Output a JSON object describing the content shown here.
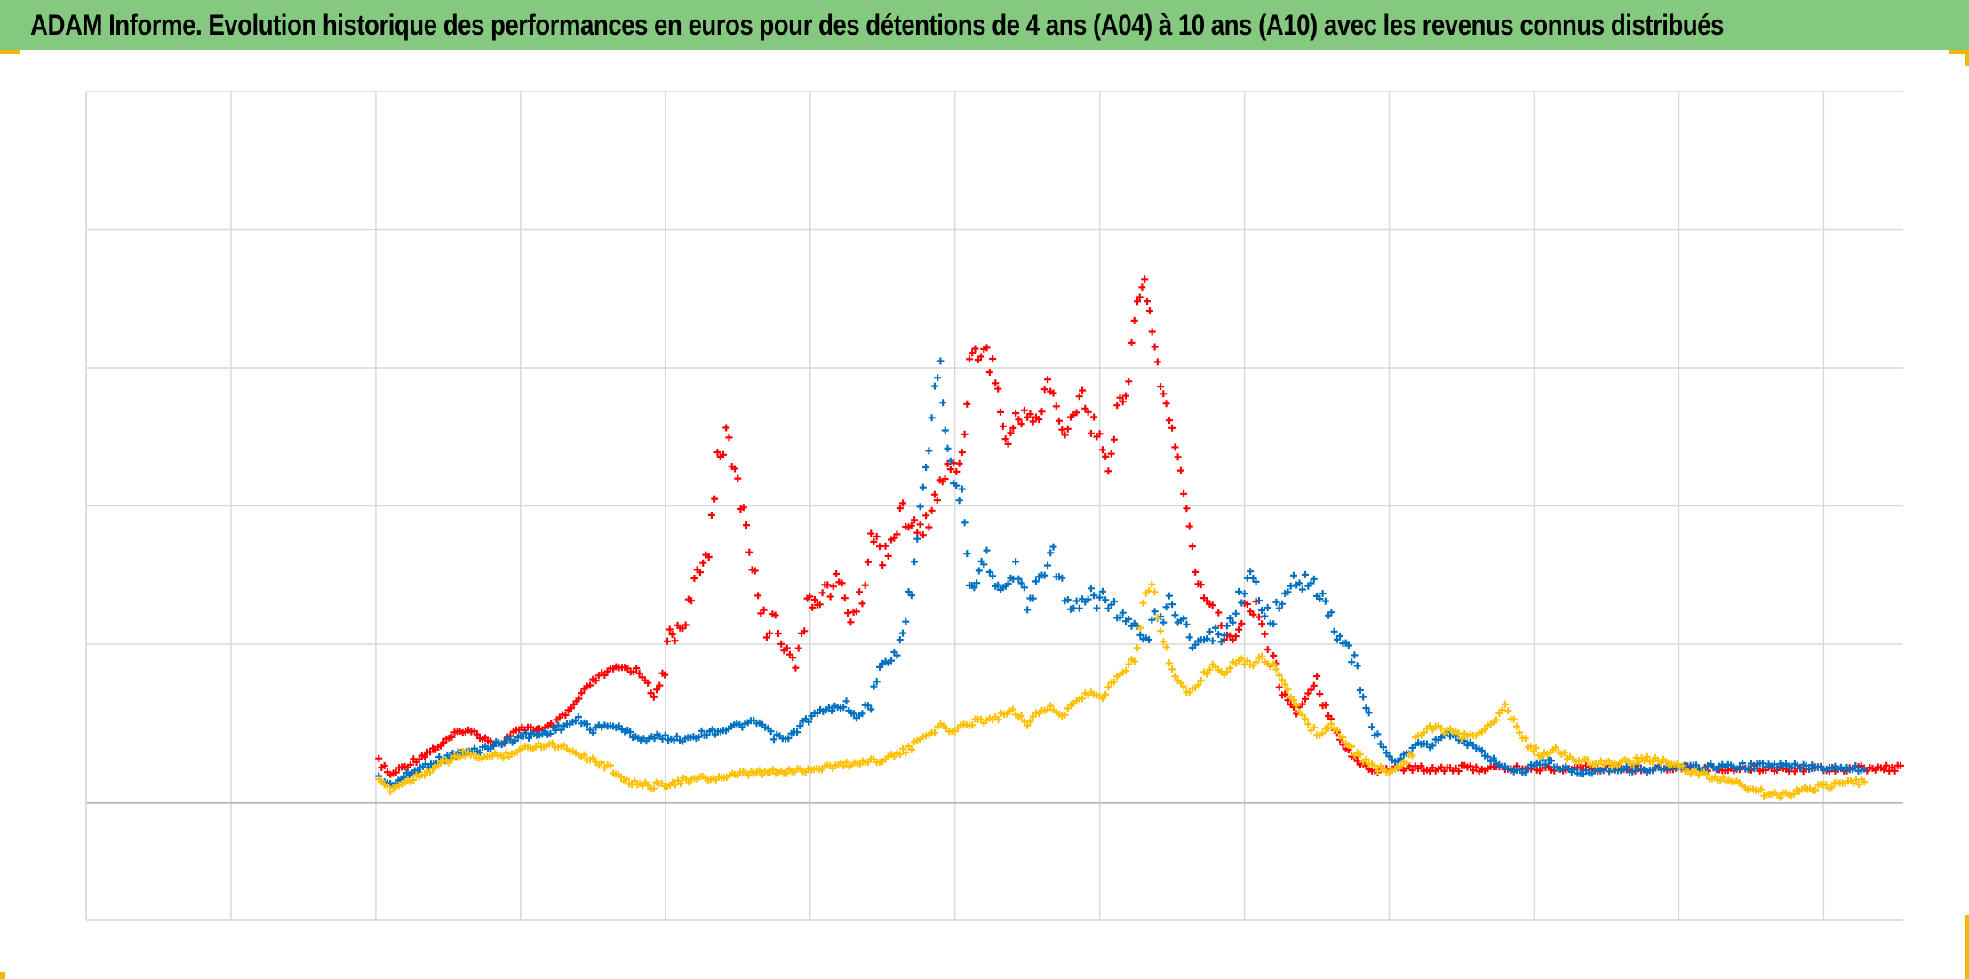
{
  "title": "ADAM Informe. Evolution historique des performances en euros pour des détentions de 4 ans (A04) à 10 ans (A10) avec les revenus connus distribués",
  "colors": {
    "title_bar": "#84c97f",
    "corner_marks": "#f2b807",
    "gridline": "#d9d9d9",
    "zero_line": "#bfbfbf"
  },
  "chart_data": {
    "type": "scatter",
    "marker": "plus",
    "title": "",
    "xlabel": "",
    "ylabel": "",
    "xlim": [
      0,
      12.55
    ],
    "ylim": [
      -0.85,
      5.15
    ],
    "x_gridlines": 13,
    "y_gridlines": [
      -0.85,
      0,
      1.15,
      2.15,
      3.15,
      4.15,
      5.15
    ],
    "grid": true,
    "tick_labels": "none",
    "legend": "none",
    "series": [
      {
        "color": "#ff0000",
        "points": [
          [
            2.02,
            0.3
          ],
          [
            2.1,
            0.2
          ],
          [
            2.3,
            0.33
          ],
          [
            2.45,
            0.42
          ],
          [
            2.6,
            0.53
          ],
          [
            2.7,
            0.5
          ],
          [
            2.85,
            0.42
          ],
          [
            2.95,
            0.5
          ],
          [
            3.05,
            0.55
          ],
          [
            3.15,
            0.52
          ],
          [
            3.25,
            0.58
          ],
          [
            3.35,
            0.68
          ],
          [
            3.42,
            0.78
          ],
          [
            3.5,
            0.88
          ],
          [
            3.6,
            0.95
          ],
          [
            3.7,
            0.98
          ],
          [
            3.8,
            0.96
          ],
          [
            3.88,
            0.88
          ],
          [
            3.92,
            0.75
          ],
          [
            3.98,
            0.9
          ],
          [
            4.03,
            1.2
          ],
          [
            4.12,
            1.3
          ],
          [
            4.2,
            1.55
          ],
          [
            4.3,
            1.85
          ],
          [
            4.36,
            2.5
          ],
          [
            4.42,
            2.65
          ],
          [
            4.5,
            2.3
          ],
          [
            4.56,
            2.0
          ],
          [
            4.62,
            1.6
          ],
          [
            4.7,
            1.25
          ],
          [
            4.76,
            1.35
          ],
          [
            4.82,
            1.12
          ],
          [
            4.9,
            1.05
          ],
          [
            4.98,
            1.4
          ],
          [
            5.05,
            1.5
          ],
          [
            5.12,
            1.55
          ],
          [
            5.2,
            1.6
          ],
          [
            5.28,
            1.35
          ],
          [
            5.36,
            1.48
          ],
          [
            5.42,
            1.95
          ],
          [
            5.5,
            1.8
          ],
          [
            5.56,
            1.9
          ],
          [
            5.64,
            2.1
          ],
          [
            5.7,
            2.0
          ],
          [
            5.78,
            1.95
          ],
          [
            5.86,
            2.2
          ],
          [
            5.95,
            2.4
          ],
          [
            6.05,
            2.5
          ],
          [
            6.1,
            3.2
          ],
          [
            6.2,
            3.3
          ],
          [
            6.28,
            3.1
          ],
          [
            6.35,
            2.6
          ],
          [
            6.42,
            2.75
          ],
          [
            6.5,
            2.85
          ],
          [
            6.58,
            2.75
          ],
          [
            6.64,
            3.05
          ],
          [
            6.7,
            2.9
          ],
          [
            6.76,
            2.6
          ],
          [
            6.82,
            2.85
          ],
          [
            6.88,
            3.0
          ],
          [
            6.94,
            2.7
          ],
          [
            7.0,
            2.75
          ],
          [
            7.06,
            2.35
          ],
          [
            7.14,
            2.95
          ],
          [
            7.2,
            3.05
          ],
          [
            7.26,
            3.65
          ],
          [
            7.31,
            3.75
          ],
          [
            7.38,
            3.3
          ],
          [
            7.44,
            2.95
          ],
          [
            7.52,
            2.55
          ],
          [
            7.58,
            2.3
          ],
          [
            7.66,
            1.65
          ],
          [
            7.72,
            1.55
          ],
          [
            7.8,
            1.35
          ],
          [
            7.86,
            1.2
          ],
          [
            7.94,
            1.2
          ],
          [
            8.0,
            1.4
          ],
          [
            8.08,
            1.45
          ],
          [
            8.14,
            1.2
          ],
          [
            8.2,
            1.0
          ],
          [
            8.28,
            0.8
          ],
          [
            8.36,
            0.65
          ],
          [
            8.44,
            0.8
          ],
          [
            8.5,
            0.9
          ],
          [
            8.56,
            0.7
          ],
          [
            8.62,
            0.55
          ],
          [
            8.7,
            0.4
          ],
          [
            8.8,
            0.28
          ],
          [
            8.9,
            0.23
          ],
          [
            9.0,
            0.25
          ],
          [
            9.3,
            0.25
          ],
          [
            9.8,
            0.25
          ],
          [
            10.3,
            0.25
          ],
          [
            10.8,
            0.25
          ],
          [
            11.3,
            0.25
          ],
          [
            11.8,
            0.25
          ],
          [
            12.3,
            0.25
          ],
          [
            12.55,
            0.25
          ]
        ]
      },
      {
        "color": "#0070c0",
        "points": [
          [
            2.02,
            0.18
          ],
          [
            2.1,
            0.13
          ],
          [
            2.25,
            0.22
          ],
          [
            2.4,
            0.3
          ],
          [
            2.55,
            0.35
          ],
          [
            2.7,
            0.38
          ],
          [
            2.85,
            0.43
          ],
          [
            3.0,
            0.48
          ],
          [
            3.15,
            0.5
          ],
          [
            3.28,
            0.55
          ],
          [
            3.4,
            0.6
          ],
          [
            3.5,
            0.53
          ],
          [
            3.62,
            0.57
          ],
          [
            3.72,
            0.52
          ],
          [
            3.85,
            0.46
          ],
          [
            3.98,
            0.48
          ],
          [
            4.1,
            0.46
          ],
          [
            4.25,
            0.5
          ],
          [
            4.4,
            0.53
          ],
          [
            4.55,
            0.57
          ],
          [
            4.65,
            0.58
          ],
          [
            4.75,
            0.48
          ],
          [
            4.85,
            0.46
          ],
          [
            4.95,
            0.58
          ],
          [
            5.05,
            0.65
          ],
          [
            5.15,
            0.68
          ],
          [
            5.25,
            0.72
          ],
          [
            5.32,
            0.6
          ],
          [
            5.42,
            0.75
          ],
          [
            5.5,
            1.0
          ],
          [
            5.58,
            1.05
          ],
          [
            5.64,
            1.25
          ],
          [
            5.7,
            1.55
          ],
          [
            5.76,
            2.2
          ],
          [
            5.82,
            2.6
          ],
          [
            5.86,
            3.0
          ],
          [
            5.9,
            3.2
          ],
          [
            5.95,
            2.5
          ],
          [
            6.05,
            2.2
          ],
          [
            6.1,
            1.5
          ],
          [
            6.15,
            1.6
          ],
          [
            6.2,
            1.8
          ],
          [
            6.28,
            1.65
          ],
          [
            6.35,
            1.55
          ],
          [
            6.42,
            1.7
          ],
          [
            6.5,
            1.45
          ],
          [
            6.58,
            1.6
          ],
          [
            6.66,
            1.85
          ],
          [
            6.72,
            1.65
          ],
          [
            6.8,
            1.35
          ],
          [
            6.9,
            1.45
          ],
          [
            7.0,
            1.5
          ],
          [
            7.1,
            1.4
          ],
          [
            7.2,
            1.3
          ],
          [
            7.3,
            1.15
          ],
          [
            7.4,
            1.35
          ],
          [
            7.5,
            1.45
          ],
          [
            7.58,
            1.3
          ],
          [
            7.66,
            1.15
          ],
          [
            7.76,
            1.2
          ],
          [
            7.86,
            1.25
          ],
          [
            7.94,
            1.4
          ],
          [
            8.02,
            1.65
          ],
          [
            8.1,
            1.5
          ],
          [
            8.18,
            1.35
          ],
          [
            8.28,
            1.45
          ],
          [
            8.36,
            1.65
          ],
          [
            8.44,
            1.6
          ],
          [
            8.5,
            1.55
          ],
          [
            8.58,
            1.35
          ],
          [
            8.66,
            1.2
          ],
          [
            8.74,
            1.1
          ],
          [
            8.8,
            0.85
          ],
          [
            8.86,
            0.65
          ],
          [
            8.94,
            0.42
          ],
          [
            9.02,
            0.3
          ],
          [
            9.1,
            0.33
          ],
          [
            9.2,
            0.45
          ],
          [
            9.28,
            0.42
          ],
          [
            9.38,
            0.5
          ],
          [
            9.46,
            0.48
          ],
          [
            9.56,
            0.42
          ],
          [
            9.66,
            0.35
          ],
          [
            9.78,
            0.27
          ],
          [
            9.9,
            0.22
          ],
          [
            10.0,
            0.28
          ],
          [
            10.1,
            0.3
          ],
          [
            10.2,
            0.25
          ],
          [
            10.3,
            0.22
          ],
          [
            10.5,
            0.25
          ],
          [
            10.8,
            0.24
          ],
          [
            11.2,
            0.26
          ],
          [
            11.6,
            0.27
          ],
          [
            12.0,
            0.26
          ],
          [
            12.3,
            0.25
          ]
        ]
      },
      {
        "color": "#ffc000",
        "points": [
          [
            2.02,
            0.15
          ],
          [
            2.1,
            0.1
          ],
          [
            2.3,
            0.2
          ],
          [
            2.45,
            0.28
          ],
          [
            2.6,
            0.35
          ],
          [
            2.75,
            0.33
          ],
          [
            2.9,
            0.35
          ],
          [
            3.05,
            0.4
          ],
          [
            3.18,
            0.43
          ],
          [
            3.32,
            0.4
          ],
          [
            3.42,
            0.35
          ],
          [
            3.52,
            0.3
          ],
          [
            3.62,
            0.25
          ],
          [
            3.75,
            0.15
          ],
          [
            3.9,
            0.12
          ],
          [
            4.05,
            0.15
          ],
          [
            4.2,
            0.17
          ],
          [
            4.35,
            0.18
          ],
          [
            4.5,
            0.2
          ],
          [
            4.65,
            0.22
          ],
          [
            4.8,
            0.22
          ],
          [
            4.95,
            0.24
          ],
          [
            5.1,
            0.26
          ],
          [
            5.25,
            0.28
          ],
          [
            5.4,
            0.3
          ],
          [
            5.5,
            0.32
          ],
          [
            5.6,
            0.35
          ],
          [
            5.7,
            0.4
          ],
          [
            5.8,
            0.5
          ],
          [
            5.9,
            0.55
          ],
          [
            6.0,
            0.52
          ],
          [
            6.1,
            0.58
          ],
          [
            6.2,
            0.6
          ],
          [
            6.3,
            0.62
          ],
          [
            6.4,
            0.68
          ],
          [
            6.5,
            0.58
          ],
          [
            6.58,
            0.65
          ],
          [
            6.66,
            0.7
          ],
          [
            6.74,
            0.62
          ],
          [
            6.82,
            0.72
          ],
          [
            6.92,
            0.8
          ],
          [
            7.0,
            0.75
          ],
          [
            7.08,
            0.85
          ],
          [
            7.16,
            0.95
          ],
          [
            7.24,
            1.05
          ],
          [
            7.3,
            1.5
          ],
          [
            7.36,
            1.6
          ],
          [
            7.42,
            1.3
          ],
          [
            7.48,
            1.0
          ],
          [
            7.56,
            0.85
          ],
          [
            7.62,
            0.8
          ],
          [
            7.7,
            0.9
          ],
          [
            7.78,
            1.0
          ],
          [
            7.86,
            0.95
          ],
          [
            7.96,
            1.05
          ],
          [
            8.04,
            1.0
          ],
          [
            8.12,
            1.05
          ],
          [
            8.2,
            1.0
          ],
          [
            8.28,
            0.85
          ],
          [
            8.36,
            0.7
          ],
          [
            8.44,
            0.55
          ],
          [
            8.52,
            0.5
          ],
          [
            8.6,
            0.55
          ],
          [
            8.68,
            0.48
          ],
          [
            8.76,
            0.36
          ],
          [
            8.84,
            0.3
          ],
          [
            8.92,
            0.25
          ],
          [
            9.0,
            0.22
          ],
          [
            9.1,
            0.3
          ],
          [
            9.2,
            0.5
          ],
          [
            9.3,
            0.55
          ],
          [
            9.4,
            0.52
          ],
          [
            9.5,
            0.48
          ],
          [
            9.6,
            0.5
          ],
          [
            9.7,
            0.55
          ],
          [
            9.8,
            0.7
          ],
          [
            9.88,
            0.55
          ],
          [
            9.96,
            0.42
          ],
          [
            10.05,
            0.35
          ],
          [
            10.15,
            0.38
          ],
          [
            10.25,
            0.32
          ],
          [
            10.35,
            0.3
          ],
          [
            10.5,
            0.28
          ],
          [
            10.65,
            0.3
          ],
          [
            10.8,
            0.32
          ],
          [
            10.95,
            0.28
          ],
          [
            11.1,
            0.22
          ],
          [
            11.25,
            0.18
          ],
          [
            11.4,
            0.15
          ],
          [
            11.55,
            0.08
          ],
          [
            11.7,
            0.05
          ],
          [
            11.85,
            0.1
          ],
          [
            12.0,
            0.12
          ],
          [
            12.15,
            0.14
          ],
          [
            12.3,
            0.16
          ]
        ]
      }
    ]
  }
}
